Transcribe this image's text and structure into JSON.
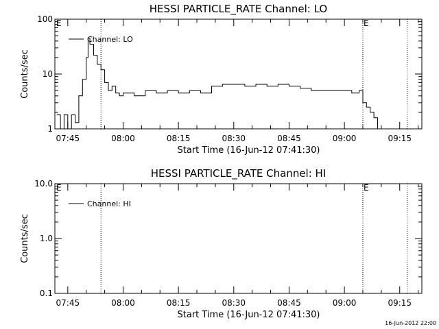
{
  "footer_timestamp": "16-Jun-2012 22:00",
  "colors": {
    "background": "#ffffff",
    "foreground": "#000000"
  },
  "chart_data": [
    {
      "type": "line",
      "title": "HESSI PARTICLE_RATE Channel: LO",
      "xlabel": "Start Time (16-Jun-12 07:41:30)",
      "ylabel": "Counts/sec",
      "yscale": "log",
      "ylim": [
        1,
        100
      ],
      "y_ticks": [
        "1",
        "10",
        "100"
      ],
      "xlim": [
        "07:41:30",
        "09:21:00"
      ],
      "x_ticks": [
        "07:45",
        "08:00",
        "08:15",
        "08:30",
        "08:45",
        "09:00",
        "09:15"
      ],
      "legend": {
        "position": "top-left",
        "entries": [
          "Channel: LO"
        ]
      },
      "event_lines": [
        {
          "time": "07:54",
          "label": ""
        },
        {
          "time": "09:05",
          "label": "E"
        },
        {
          "time": "09:17",
          "label": ""
        }
      ],
      "corner_marker": "E",
      "grid": false,
      "series": [
        {
          "name": "Channel: LO",
          "x": [
            "07:42",
            "07:43",
            "07:44",
            "07:45",
            "07:46",
            "07:47",
            "07:48",
            "07:49",
            "07:50",
            "07:50:30",
            "07:51",
            "07:52",
            "07:53",
            "07:54",
            "07:55",
            "07:56",
            "07:57",
            "07:58",
            "07:59",
            "08:00",
            "08:03",
            "08:06",
            "08:09",
            "08:12",
            "08:15",
            "08:18",
            "08:21",
            "08:24",
            "08:27",
            "08:30",
            "08:33",
            "08:36",
            "08:39",
            "08:42",
            "08:45",
            "08:48",
            "08:51",
            "08:54",
            "08:57",
            "09:00",
            "09:02",
            "09:04",
            "09:05",
            "09:06",
            "09:07",
            "09:08",
            "09:09"
          ],
          "values": [
            1.8,
            1.0,
            1.8,
            1.0,
            1.8,
            1.3,
            4,
            8,
            20,
            45,
            35,
            22,
            15,
            12,
            7,
            5,
            6,
            4.5,
            4,
            4.5,
            4,
            5,
            4.5,
            5,
            4.5,
            5,
            4.5,
            6,
            6.5,
            6.5,
            6,
            6.5,
            6,
            6.5,
            6,
            5.5,
            5,
            5,
            5,
            5,
            4.5,
            5,
            3,
            2.5,
            2,
            1.6,
            1.0
          ]
        }
      ]
    },
    {
      "type": "line",
      "title": "HESSI PARTICLE_RATE Channel: HI",
      "xlabel": "Start Time (16-Jun-12 07:41:30)",
      "ylabel": "Counts/sec",
      "yscale": "log",
      "ylim": [
        0.1,
        10.0
      ],
      "y_ticks": [
        "0.1",
        "1.0",
        "10.0"
      ],
      "xlim": [
        "07:41:30",
        "09:21:00"
      ],
      "x_ticks": [
        "07:45",
        "08:00",
        "08:15",
        "08:30",
        "08:45",
        "09:00",
        "09:15"
      ],
      "legend": {
        "position": "top-left",
        "entries": [
          "Channel: HI"
        ]
      },
      "event_lines": [
        {
          "time": "07:54",
          "label": ""
        },
        {
          "time": "09:05",
          "label": "E"
        },
        {
          "time": "09:17",
          "label": ""
        }
      ],
      "corner_marker": "E",
      "grid": false,
      "series": [
        {
          "name": "Channel: HI",
          "x": [],
          "values": []
        }
      ]
    }
  ]
}
